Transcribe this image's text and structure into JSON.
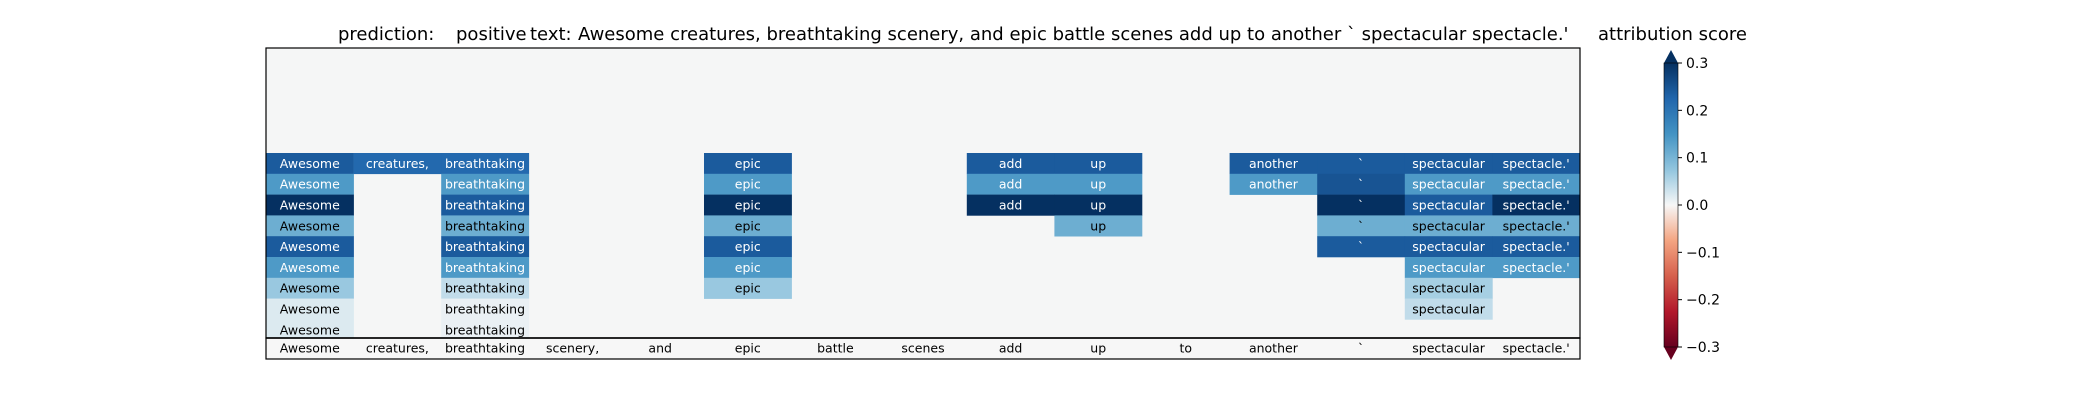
{
  "chart_data": {
    "type": "heatmap",
    "title": {
      "prediction_label": "prediction:",
      "prediction": "positive",
      "text_label": "text:",
      "text": "Awesome creatures, breathtaking scenery, and epic battle scenes add up to another ` spectacular spectacle.'"
    },
    "tokens": [
      "Awesome",
      "creatures,",
      "breathtaking",
      "scenery,",
      "and",
      "epic",
      "battle",
      "scenes",
      "add",
      "up",
      "to",
      "another",
      "`",
      "spectacular",
      "spectacle.'"
    ],
    "rows": [
      [
        0.24,
        0.22,
        0.22,
        null,
        null,
        0.24,
        null,
        null,
        0.24,
        0.24,
        null,
        0.24,
        0.24,
        0.24,
        0.24
      ],
      [
        0.14,
        null,
        0.14,
        null,
        null,
        0.14,
        null,
        null,
        0.14,
        0.14,
        null,
        0.14,
        0.25,
        0.14,
        0.14
      ],
      [
        0.31,
        null,
        0.24,
        null,
        null,
        0.31,
        null,
        null,
        0.31,
        0.31,
        null,
        null,
        0.31,
        0.24,
        0.31
      ],
      [
        0.11,
        null,
        0.11,
        null,
        null,
        0.11,
        null,
        null,
        null,
        0.11,
        null,
        null,
        0.11,
        0.11,
        0.11
      ],
      [
        0.24,
        null,
        0.24,
        null,
        null,
        0.24,
        null,
        null,
        null,
        null,
        null,
        null,
        0.24,
        0.24,
        0.24
      ],
      [
        0.14,
        null,
        0.14,
        null,
        null,
        0.14,
        null,
        null,
        null,
        null,
        null,
        null,
        null,
        0.14,
        0.14
      ],
      [
        0.07,
        null,
        0.04,
        null,
        null,
        0.07,
        null,
        null,
        null,
        null,
        null,
        null,
        null,
        0.06,
        null
      ],
      [
        0.02,
        null,
        0.01,
        null,
        null,
        null,
        null,
        null,
        null,
        null,
        null,
        null,
        null,
        0.04,
        null
      ],
      [
        0.02,
        null,
        0.01,
        null,
        null,
        null,
        null,
        null,
        null,
        null,
        null,
        null,
        null,
        null,
        null
      ]
    ],
    "bottom_row": [
      0.0,
      0.0,
      0.0,
      0.0,
      0.0,
      0.0,
      0.0,
      0.0,
      0.0,
      0.0,
      0.0,
      0.0,
      0.0,
      0.0,
      0.0
    ],
    "colorbar": {
      "label": "attribution score",
      "colormap": "RdBu",
      "range": [
        -0.3,
        0.3
      ],
      "ticks": [
        0.3,
        0.2,
        0.1,
        0.0,
        -0.1,
        -0.2,
        -0.3
      ],
      "tick_labels": [
        "0.3",
        "0.2",
        "0.1",
        "0.0",
        "−0.1",
        "−0.2",
        "−0.3"
      ],
      "extend": "both"
    },
    "background_color": "#f5f6f6"
  }
}
